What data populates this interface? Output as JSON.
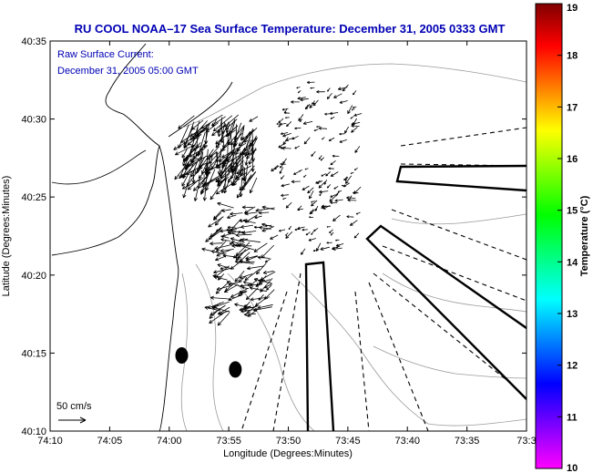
{
  "chart_data": {
    "type": "vector-field-map",
    "title": "RU COOL  NOAA–17  Sea Surface Temperature:  December 31, 2005 0333 GMT",
    "annotation_line1": "Raw Surface Current:",
    "annotation_line2": "December 31, 2005 05:00 GMT",
    "xlabel": "Longitude (Degrees:Minutes)",
    "ylabel": "Latitude (Degrees:Minutes)",
    "x_tick_labels": [
      "74:10",
      "74:05",
      "74:00",
      "73:55",
      "73:50",
      "73:45",
      "73:40",
      "73:35",
      "73:3"
    ],
    "x_tick_values_deg": [
      -74.1667,
      -74.0833,
      -74.0,
      -73.9167,
      -73.8333,
      -73.75,
      -73.6667,
      -73.5833,
      -73.5
    ],
    "y_tick_labels": [
      "40:10",
      "40:15",
      "40:20",
      "40:25",
      "40:30",
      "40:35"
    ],
    "y_tick_values_deg": [
      40.1667,
      40.25,
      40.3333,
      40.4167,
      40.5,
      40.5833
    ],
    "xlim_deg": [
      -74.1667,
      -73.5
    ],
    "ylim_deg": [
      40.1667,
      40.5833
    ],
    "scale_label": "50 cm/s",
    "scale_speed_cms": 50,
    "colorbar": {
      "label": "Temperature (°C)",
      "min": 10,
      "max": 19,
      "tick_labels": [
        "10",
        "11",
        "12",
        "13",
        "14",
        "15",
        "16",
        "17",
        "18",
        "19"
      ],
      "tick_values": [
        10,
        11,
        12,
        13,
        14,
        15,
        16,
        17,
        18,
        19
      ],
      "colors": [
        "#ff00ff",
        "#7f00ff",
        "#0000ff",
        "#0080ff",
        "#00ffff",
        "#00ff80",
        "#00ff00",
        "#80ff00",
        "#ffff00",
        "#ff8000",
        "#ff0000",
        "#800000"
      ]
    },
    "stations": [
      {
        "name": "station-1",
        "lon": -73.9825,
        "lat": 40.2475
      },
      {
        "name": "station-2",
        "lon": -73.9075,
        "lat": 40.2325
      }
    ],
    "current_regions": [
      {
        "center_lon": -73.925,
        "center_lat": 40.47,
        "spread_lon": 0.05,
        "spread_lat": 0.035,
        "direction_deg": 210,
        "speed_cms": 35,
        "count": 180
      },
      {
        "center_lon": -73.89,
        "center_lat": 40.35,
        "spread_lon": 0.04,
        "spread_lat": 0.06,
        "direction_deg": 255,
        "speed_cms": 25,
        "count": 140
      },
      {
        "center_lon": -73.79,
        "center_lat": 40.45,
        "spread_lon": 0.06,
        "spread_lat": 0.09,
        "direction_deg": 240,
        "speed_cms": 12,
        "count": 160
      }
    ]
  }
}
